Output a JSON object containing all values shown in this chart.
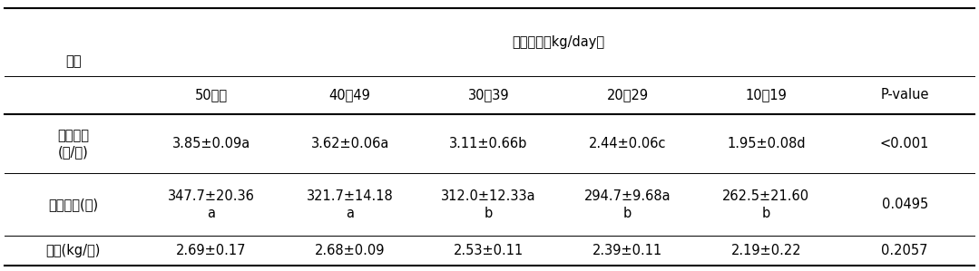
{
  "title_row": "산유수준（kg/day）",
  "col_header1": "구분",
  "col_headers": [
    "50이상",
    "40～49",
    "30～39",
    "20～29",
    "10～19",
    "P-value"
  ],
  "row_labels": [
    "착유횟수\n(횟/일)",
    "착유시간(초)",
    "유속(kg/분)"
  ],
  "row1_values": [
    "3.85±0.09a",
    "3.62±0.06a",
    "3.11±0.66b",
    "2.44±0.06c",
    "1.95±0.08d",
    "<0.001"
  ],
  "row2_values": [
    "347.7±20.36\na",
    "321.7±14.18\na",
    "312.0±12.33a\nb",
    "294.7±9.68a\nb",
    "262.5±21.60\nb",
    "0.0495"
  ],
  "row3_values": [
    "2.69±0.17",
    "2.68±0.09",
    "2.53±0.11",
    "2.39±0.11",
    "2.19±0.22",
    "0.2057"
  ],
  "bg_color": "#ffffff",
  "text_color": "#000000",
  "font_size": 10.5,
  "lw_thick": 1.5,
  "lw_thin": 0.7
}
